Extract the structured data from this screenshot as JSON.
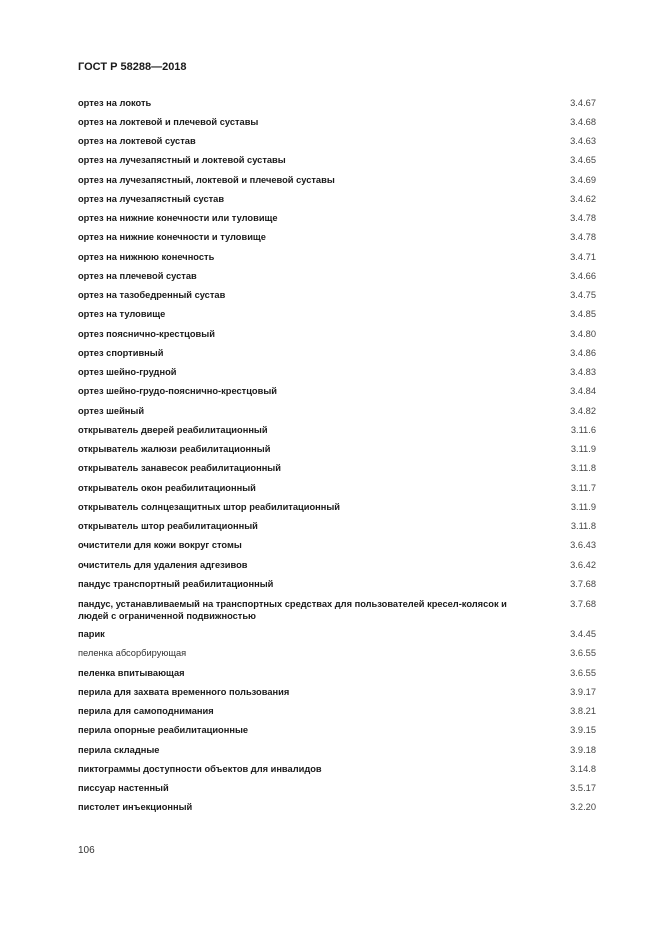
{
  "header": {
    "title": "ГОСТ Р 58288—2018"
  },
  "entries": [
    {
      "term": "ортез на локоть",
      "ref": "3.4.67"
    },
    {
      "term": "ортез на локтевой и плечевой суставы",
      "ref": "3.4.68"
    },
    {
      "term": "ортез на локтевой сустав",
      "ref": "3.4.63"
    },
    {
      "term": "ортез на лучезапястный и локтевой суставы",
      "ref": "3.4.65"
    },
    {
      "term": "ортез на лучезапястный, локтевой и плечевой суставы",
      "ref": "3.4.69"
    },
    {
      "term": "ортез на лучезапястный сустав",
      "ref": "3.4.62"
    },
    {
      "term": "ортез на нижние конечности или туловище",
      "ref": "3.4.78"
    },
    {
      "term": "ортез на нижние конечности и туловище",
      "ref": "3.4.78"
    },
    {
      "term": "ортез на нижнюю конечность",
      "ref": "3.4.71"
    },
    {
      "term": "ортез на плечевой сустав",
      "ref": "3.4.66"
    },
    {
      "term": "ортез на тазобедренный сустав",
      "ref": "3.4.75"
    },
    {
      "term": "ортез на туловище",
      "ref": "3.4.85"
    },
    {
      "term": "ортез пояснично-крестцовый",
      "ref": "3.4.80"
    },
    {
      "term": "ортез спортивный",
      "ref": "3.4.86"
    },
    {
      "term": "ортез шейно-грудной",
      "ref": "3.4.83"
    },
    {
      "term": "ортез шейно-грудо-пояснично-крестцовый",
      "ref": "3.4.84"
    },
    {
      "term": "ортез шейный",
      "ref": "3.4.82"
    },
    {
      "term": "открыватель дверей реабилитационный",
      "ref": "3.11.6"
    },
    {
      "term": "открыватель жалюзи реабилитационный",
      "ref": "3.11.9"
    },
    {
      "term": "открыватель занавесок реабилитационный",
      "ref": "3.11.8"
    },
    {
      "term": "открыватель окон реабилитационный",
      "ref": "3.11.7"
    },
    {
      "term": "открыватель солнцезащитных штор реабилитационный",
      "ref": "3.11.9"
    },
    {
      "term": "открыватель штор реабилитационный",
      "ref": "3.11.8"
    },
    {
      "term": "очистители для кожи вокруг стомы",
      "ref": "3.6.43"
    },
    {
      "term": "очиститель для удаления адгезивов",
      "ref": "3.6.42"
    },
    {
      "term": "пандус транспортный реабилитационный",
      "ref": "3.7.68"
    },
    {
      "term": "пандус, устанавливаемый на транспортных средствах для пользователей кресел-колясок и людей с ограниченной подвижностью",
      "ref": "3.7.68",
      "multiline": true
    },
    {
      "term": "парик",
      "ref": "3.4.45"
    },
    {
      "term": "пеленка абсорбирующая",
      "ref": "3.6.55",
      "plain": true
    },
    {
      "term": "пеленка впитывающая",
      "ref": "3.6.55"
    },
    {
      "term": "перила для захвата временного пользования",
      "ref": "3.9.17"
    },
    {
      "term": "перила для самоподнимания",
      "ref": "3.8.21"
    },
    {
      "term": "перила опорные реабилитационные",
      "ref": "3.9.15"
    },
    {
      "term": "перила складные",
      "ref": "3.9.18"
    },
    {
      "term": "пиктограммы доступности объектов для инвалидов",
      "ref": "3.14.8"
    },
    {
      "term": "писсуар настенный",
      "ref": "3.5.17"
    },
    {
      "term": "пистолет инъекционный",
      "ref": "3.2.20"
    }
  ],
  "footer": {
    "page_number": "106"
  }
}
